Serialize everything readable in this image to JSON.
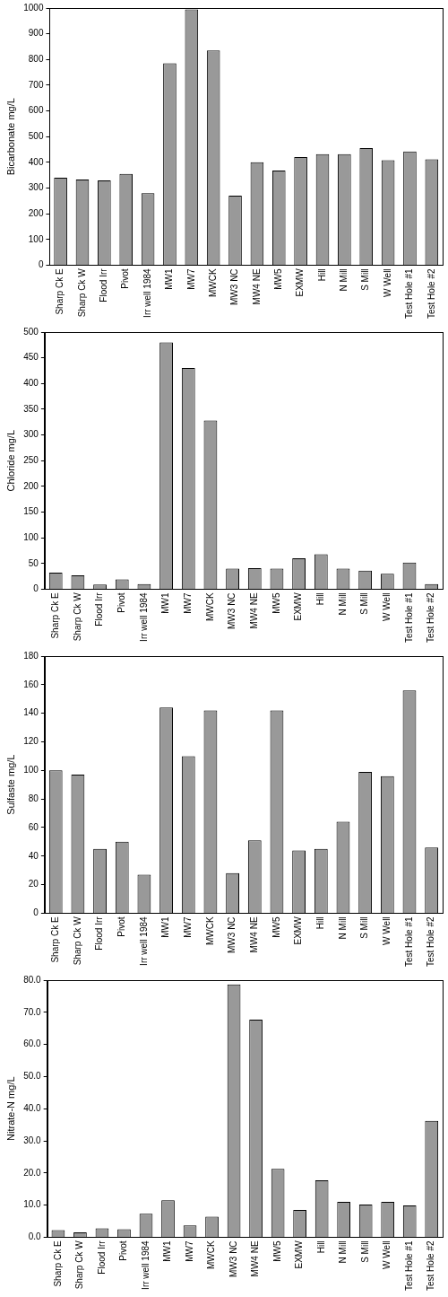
{
  "chart_data": [
    {
      "type": "bar",
      "y_label": "Bicarbonate mg/L",
      "categories": [
        "Sharp Ck E",
        "Sharp Ck W",
        "Flood Irr",
        "Pivot",
        "Irr well 1984",
        "MW1",
        "MW7",
        "MWCK",
        "MW3 NC",
        "MW4 NE",
        "MW5",
        "EXMW",
        "Hill",
        "N Mill",
        "S Mill",
        "W Well",
        "Test Hole #1",
        "Test Hole #2"
      ],
      "values": [
        340,
        333,
        330,
        355,
        280,
        785,
        995,
        835,
        270,
        400,
        368,
        420,
        432,
        432,
        455,
        408,
        442,
        412
      ],
      "color": "#999999",
      "ylim": [
        0,
        1000
      ],
      "yticks": [
        0,
        100,
        200,
        300,
        400,
        500,
        600,
        700,
        800,
        900,
        1000
      ],
      "grid": false
    },
    {
      "type": "bar",
      "y_label": "Chloride mg/L",
      "categories": [
        "Sharp Ck E",
        "Sharp Ck W",
        "Flood Irr",
        "Pivot",
        "Irr well 1984",
        "MW1",
        "MW7",
        "MWCK",
        "MW3 NC",
        "MW4 NE",
        "MW5",
        "EXMW",
        "Hill",
        "N Mill",
        "S Mill",
        "W Well",
        "Test Hole #1",
        "Test Hole #2"
      ],
      "values": [
        32,
        27,
        9,
        19,
        10,
        480,
        430,
        328,
        40,
        41,
        40,
        60,
        68,
        40,
        36,
        30,
        52,
        10
      ],
      "color": "#999999",
      "ylim": [
        0,
        500
      ],
      "yticks": [
        0,
        50,
        100,
        150,
        200,
        250,
        300,
        350,
        400,
        450,
        500
      ],
      "grid": false
    },
    {
      "type": "bar",
      "y_label": "Sulfaste mg/L",
      "categories": [
        "Sharp Ck E",
        "Sharp Ck W",
        "Flood Irr",
        "Pivot",
        "Irr well 1984",
        "MW1",
        "MW7",
        "MWCK",
        "MW3 NC",
        "MW4 NE",
        "MW5",
        "EXMW",
        "Hill",
        "N Mill",
        "S Mill",
        "W Well",
        "Test Hole #1",
        "Test Hole #2"
      ],
      "values": [
        100,
        97,
        45,
        50,
        27,
        144,
        110,
        142,
        28,
        51,
        142,
        44,
        45,
        64,
        99,
        96,
        156,
        46
      ],
      "color": "#999999",
      "ylim": [
        0,
        180
      ],
      "yticks": [
        0,
        20,
        40,
        60,
        80,
        100,
        120,
        140,
        160,
        180
      ],
      "grid": false
    },
    {
      "type": "bar",
      "y_label": "Nitrate-N mg/L",
      "categories": [
        "Sharp Ck E",
        "Sharp Ck W",
        "Flood Irr",
        "Pivot",
        "Irr well 1984",
        "MW1",
        "MW7",
        "MWCK",
        "MW3 NC",
        "MW4 NE",
        "MW5",
        "EXMW",
        "Hill",
        "N Mill",
        "S Mill",
        "W Well",
        "Test Hole #1",
        "Test Hole #2"
      ],
      "values": [
        2.2,
        1.5,
        2.8,
        2.5,
        7.3,
        11.5,
        3.7,
        6.4,
        78.7,
        67.7,
        21.3,
        8.5,
        17.7,
        11.0,
        10.2,
        11.0,
        9.9,
        36.2
      ],
      "color": "#999999",
      "ylim": [
        0,
        80
      ],
      "yticks": [
        {
          "value": 0,
          "label": "0.0"
        },
        {
          "value": 10,
          "label": "10.0"
        },
        {
          "value": 20,
          "label": "20.0"
        },
        {
          "value": 30,
          "label": "30.0"
        },
        {
          "value": 40,
          "label": "40.0"
        },
        {
          "value": 50,
          "label": "50.0"
        },
        {
          "value": 60,
          "label": "60.0"
        },
        {
          "value": 70,
          "label": "70.0"
        },
        {
          "value": 80,
          "label": "80.0"
        }
      ],
      "grid": false
    }
  ]
}
